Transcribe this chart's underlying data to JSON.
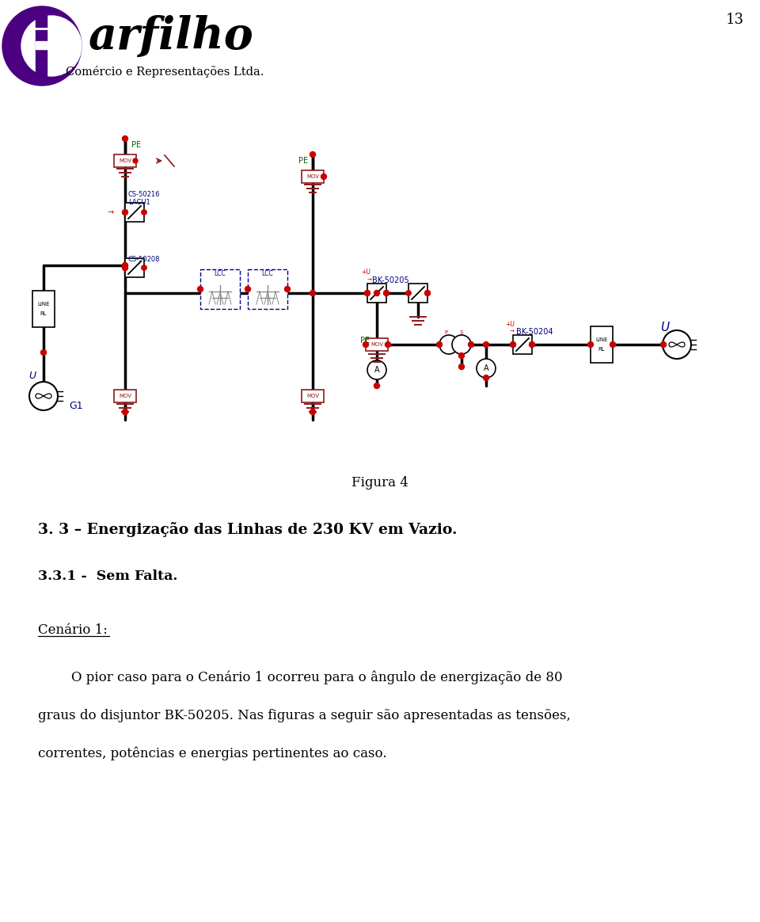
{
  "page_number": "13",
  "logo_text_main": "arfilho",
  "logo_text_sub": "Comércio e Representações Ltda.",
  "figure_caption": "Figura 4",
  "section_heading": "3. 3 – Energização das Linhas de 230 KV em Vazio.",
  "subsection_heading": "3.3.1 -  Sem Falta.",
  "scenario_label": "Cenário 1:",
  "body_text_line1": "O pior caso para o Cenário 1 ocorreu para o ângulo de energização de 80",
  "body_text_line2": "graus do disjuntor BK-50205. Nas figuras a seguir são apresentadas as tensões,",
  "body_text_line3": "correntes, potências e energias pertinentes ao caso.",
  "bg_color": "#ffffff",
  "text_color": "#000000",
  "logo_purple": "#4B0082",
  "circuit_red": "#cc0000",
  "circuit_blue": "#000080",
  "circuit_green": "#006600",
  "circuit_dark": "#000000",
  "circuit_brown": "#8B1A1A",
  "circuit_gray": "#888888"
}
